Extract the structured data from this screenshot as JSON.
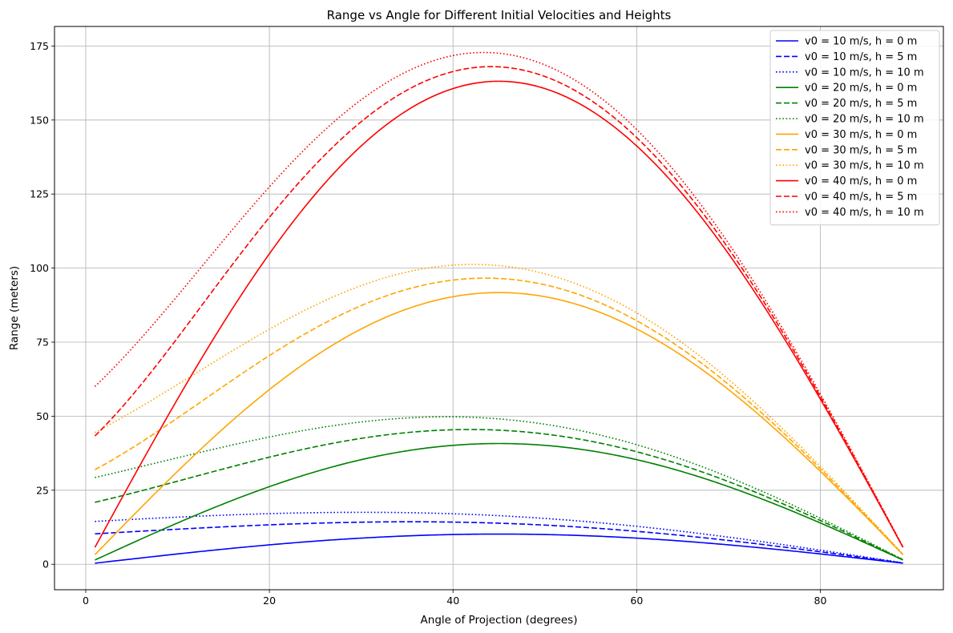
{
  "chart_data": {
    "type": "line",
    "title": "Range vs Angle for Different Initial Velocities and Heights",
    "xlabel": "Angle of Projection (degrees)",
    "ylabel": "Range (meters)",
    "xlim": [
      -3.4,
      93.4
    ],
    "ylim": [
      -8.6,
      181.6
    ],
    "xticks": [
      0,
      20,
      40,
      60,
      80
    ],
    "yticks": [
      0,
      25,
      50,
      75,
      100,
      125,
      150,
      175
    ],
    "grid": true,
    "legend_position": "top-right",
    "x_range": [
      1,
      89
    ],
    "g": 9.81,
    "series": [
      {
        "name": "v0 = 10 m/s, h = 0 m",
        "v0": 10,
        "h": 0,
        "color": "#0000ff",
        "style": "solid"
      },
      {
        "name": "v0 = 10 m/s, h = 5 m",
        "v0": 10,
        "h": 5,
        "color": "#0000ff",
        "style": "dashed"
      },
      {
        "name": "v0 = 10 m/s, h = 10 m",
        "v0": 10,
        "h": 10,
        "color": "#0000ff",
        "style": "dotted"
      },
      {
        "name": "v0 = 20 m/s, h = 0 m",
        "v0": 20,
        "h": 0,
        "color": "#008000",
        "style": "solid"
      },
      {
        "name": "v0 = 20 m/s, h = 5 m",
        "v0": 20,
        "h": 5,
        "color": "#008000",
        "style": "dashed"
      },
      {
        "name": "v0 = 20 m/s, h = 10 m",
        "v0": 20,
        "h": 10,
        "color": "#008000",
        "style": "dotted"
      },
      {
        "name": "v0 = 30 m/s, h = 0 m",
        "v0": 30,
        "h": 0,
        "color": "#ffa500",
        "style": "solid"
      },
      {
        "name": "v0 = 30 m/s, h = 5 m",
        "v0": 30,
        "h": 5,
        "color": "#ffa500",
        "style": "dashed"
      },
      {
        "name": "v0 = 30 m/s, h = 10 m",
        "v0": 30,
        "h": 10,
        "color": "#ffa500",
        "style": "dotted"
      },
      {
        "name": "v0 = 40 m/s, h = 0 m",
        "v0": 40,
        "h": 0,
        "color": "#ff0000",
        "style": "solid"
      },
      {
        "name": "v0 = 40 m/s, h = 5 m",
        "v0": 40,
        "h": 5,
        "color": "#ff0000",
        "style": "dashed"
      },
      {
        "name": "v0 = 40 m/s, h = 10 m",
        "v0": 40,
        "h": 10,
        "color": "#ff0000",
        "style": "dotted"
      }
    ]
  }
}
